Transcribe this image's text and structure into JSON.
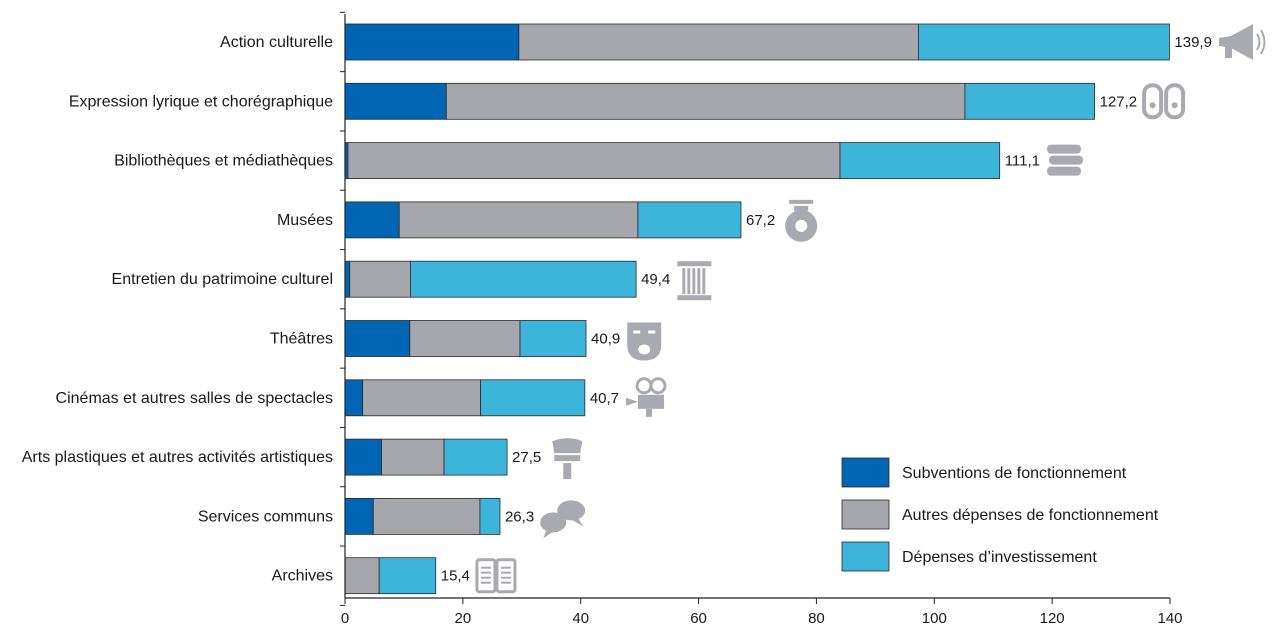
{
  "chart_data": {
    "type": "bar",
    "orientation": "horizontal",
    "stacked": true,
    "categories": [
      "Action culturelle",
      "Expression lyrique et chorégraphique",
      "Bibliothèques et médiathèques",
      "Musées",
      "Entretien du patrimoine culturel",
      "Théâtres",
      "Cinémas et autres salles de spectacles",
      "Arts plastiques et autres activités artistiques",
      "Services communs",
      "Archives"
    ],
    "series": [
      {
        "name": "Subventions de fonctionnement",
        "color": "#0066b3",
        "values": [
          29.5,
          17.2,
          0.5,
          9.2,
          0.8,
          11.0,
          3.0,
          6.2,
          4.8,
          0.0
        ]
      },
      {
        "name": "Autres dépenses de fonctionnement",
        "color": "#a6a6ad",
        "values": [
          67.8,
          88.0,
          83.5,
          40.5,
          10.3,
          18.7,
          20.0,
          10.6,
          18.1,
          5.8
        ]
      },
      {
        "name": "Dépenses d’investissement",
        "color": "#3db4da",
        "values": [
          42.6,
          22.0,
          27.1,
          17.5,
          38.3,
          11.2,
          17.7,
          10.7,
          3.4,
          9.6
        ]
      }
    ],
    "totals": [
      "139,9",
      "127,2",
      "111,1",
      "67,2",
      "49,4",
      "40,9",
      "40,7",
      "27,5",
      "26,3",
      "15,4"
    ],
    "icons": [
      "megaphone-icon",
      "ballet-shoes-icon",
      "books-icon",
      "vase-icon",
      "column-icon",
      "theatre-mask-icon",
      "film-camera-icon",
      "paintbrush-icon",
      "speech-bubbles-icon",
      "open-book-icon"
    ],
    "xlim": [
      0,
      140
    ],
    "xticks": [
      0,
      20,
      40,
      60,
      80,
      100,
      120,
      140
    ],
    "title": "",
    "xlabel": "",
    "ylabel": "",
    "legend_position": "bottom-right",
    "grid": false
  }
}
